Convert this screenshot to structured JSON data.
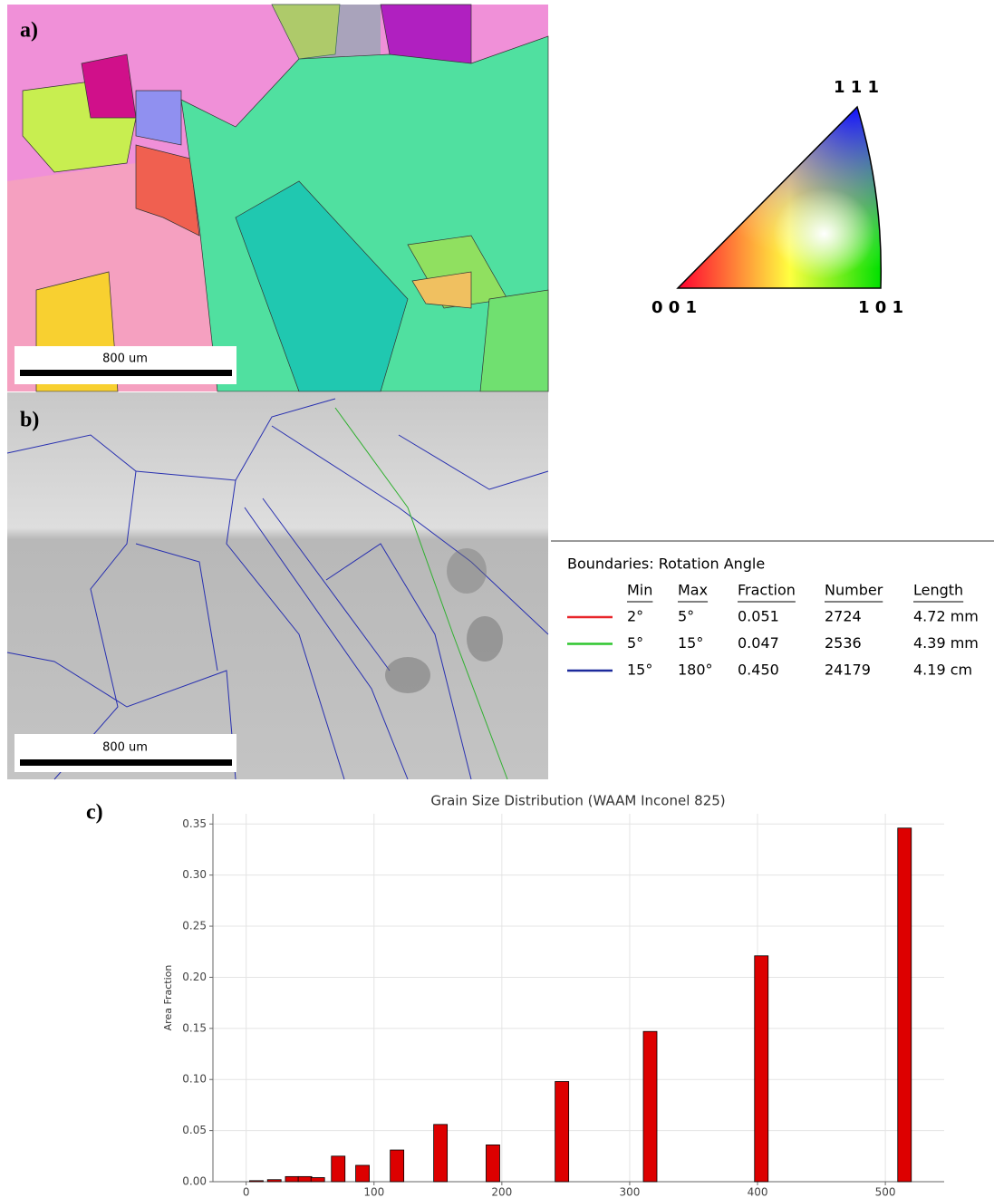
{
  "panel_a": {
    "label": "a)",
    "scale_bar": "800 um"
  },
  "panel_b": {
    "label": "b)",
    "scale_bar": "800 um"
  },
  "ipf": {
    "top": "1 1 1",
    "left": "0 0 1",
    "right": "1 0 1"
  },
  "boundaries": {
    "title": "Boundaries: Rotation Angle",
    "headers": [
      "Min",
      "Max",
      "Fraction",
      "Number",
      "Length"
    ],
    "rows": [
      {
        "color": "#e8252a",
        "cells": [
          "2°",
          "5°",
          "0.051",
          "2724",
          "4.72 mm"
        ]
      },
      {
        "color": "#2ec52e",
        "cells": [
          "5°",
          "15°",
          "0.047",
          "2536",
          "4.39 mm"
        ]
      },
      {
        "color": "#1c2a9c",
        "cells": [
          "15°",
          "180°",
          "0.450",
          "24179",
          "4.19 cm"
        ]
      }
    ]
  },
  "chart_data": {
    "type": "bar",
    "label": "c)",
    "title": "Grain Size Distribution (WAAM Inconel 825)",
    "y_label": "Area Fraction",
    "x": [
      8,
      22,
      36,
      46,
      56,
      72,
      91,
      118,
      152,
      193,
      247,
      316,
      403,
      515
    ],
    "values": [
      0.001,
      0.002,
      0.005,
      0.005,
      0.004,
      0.025,
      0.016,
      0.031,
      0.056,
      0.036,
      0.098,
      0.147,
      0.221,
      0.346
    ],
    "color": "#dd0000",
    "xlim": [
      -26,
      546
    ],
    "xticks": [
      0,
      100,
      200,
      300,
      400,
      500
    ],
    "ylim": [
      0,
      0.36
    ],
    "yticks": [
      {
        "value": 0,
        "label": "0.00"
      },
      0.05,
      {
        "value": 0.1,
        "label": "0.10"
      },
      0.15,
      {
        "value": 0.2,
        "label": "0.20"
      },
      0.25,
      {
        "value": 0.3,
        "label": "0.30"
      },
      0.35
    ],
    "grid": true
  }
}
